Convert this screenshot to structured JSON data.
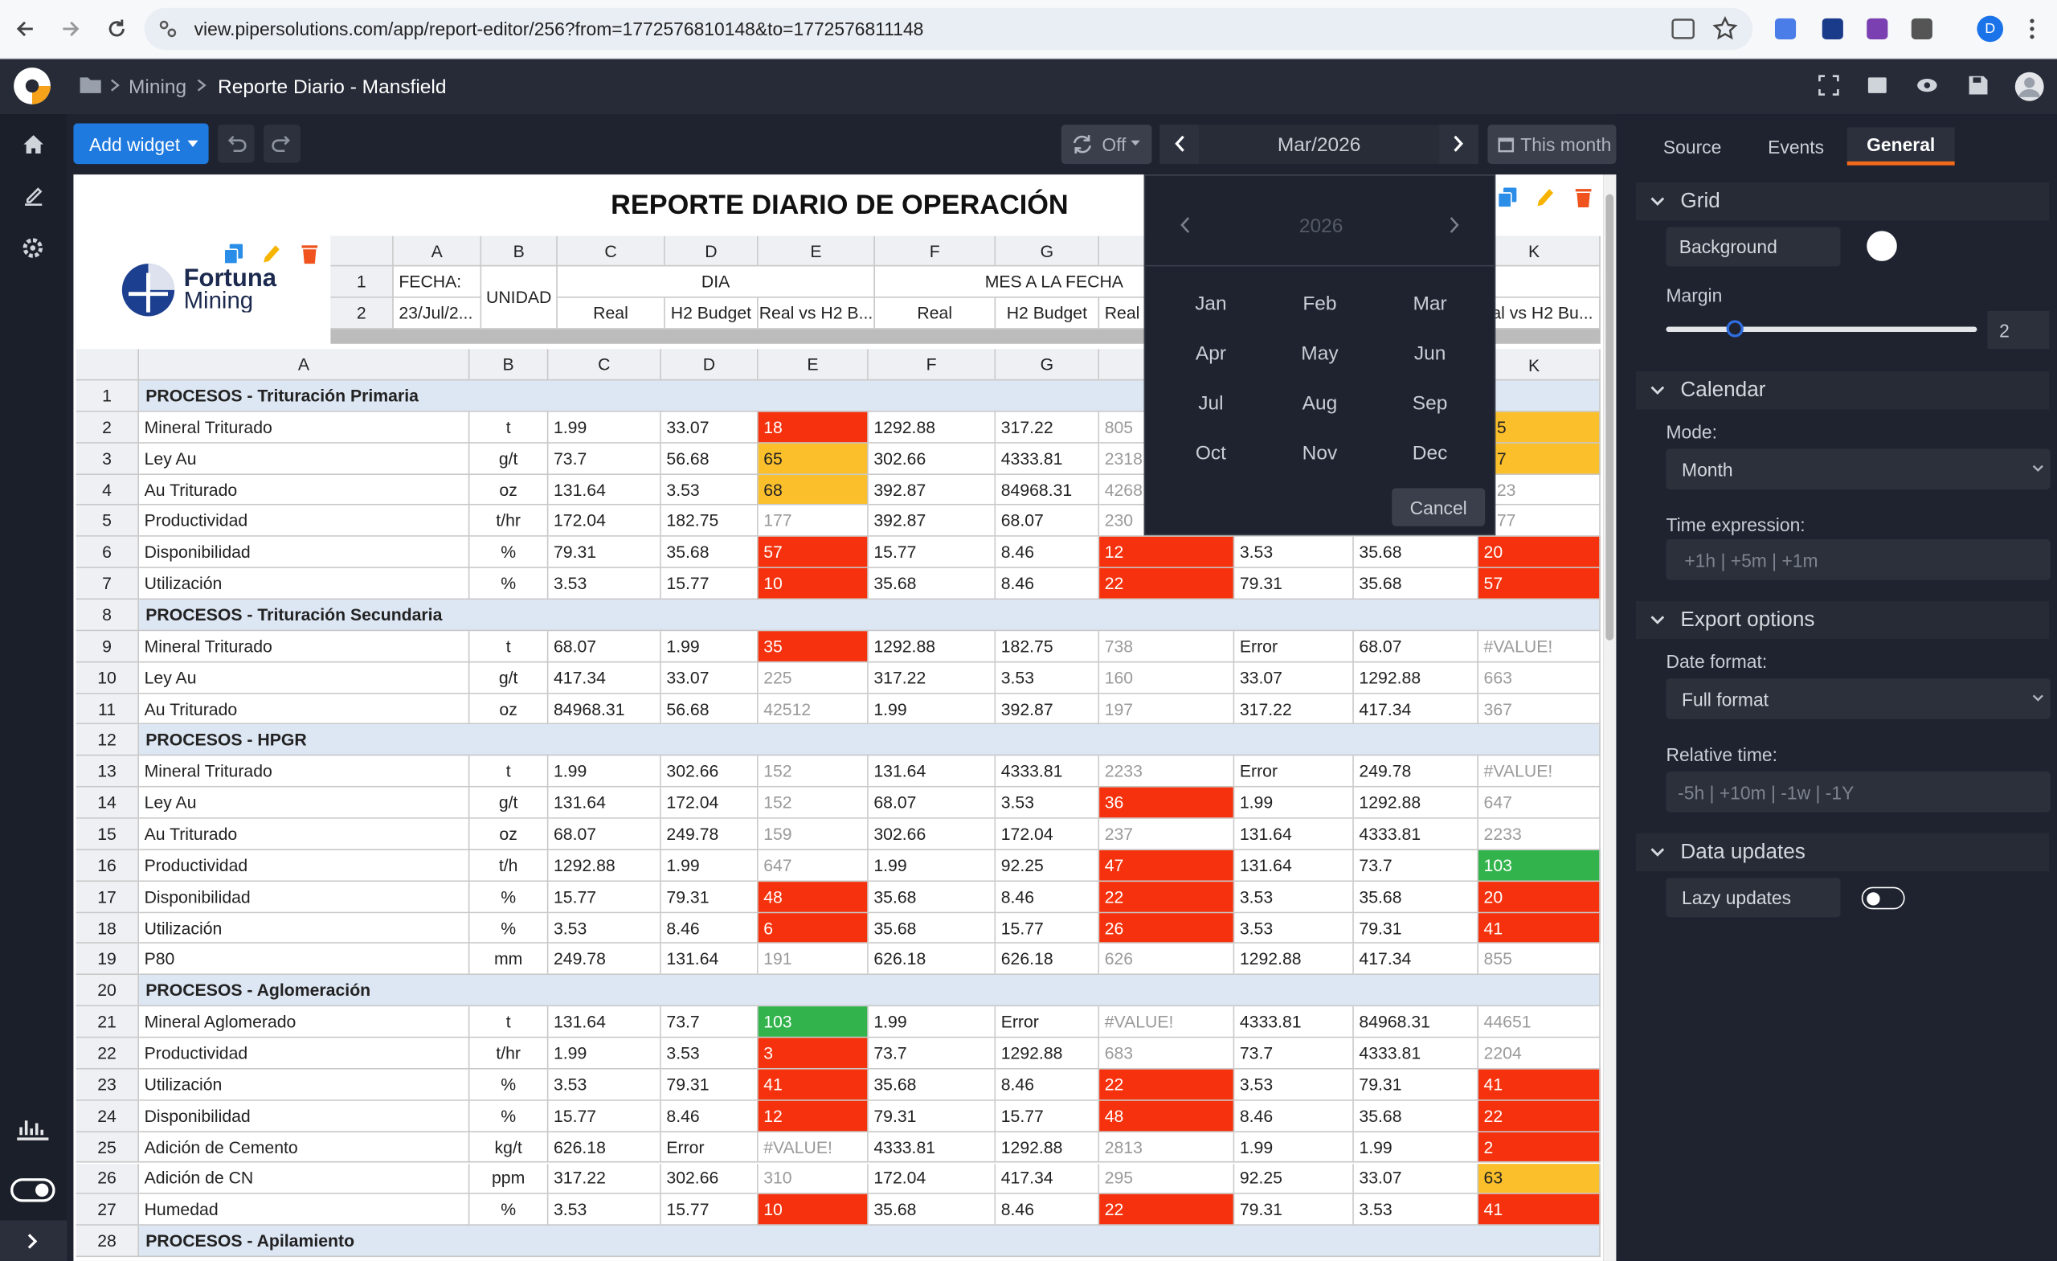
{
  "browser": {
    "url": "view.pipersolutions.com/app/report-editor/256?from=1772576810148&to=1772576811148",
    "avatar": "D"
  },
  "header": {
    "breadcrumb": "Mining",
    "title": "Reporte Diario - Mansfield"
  },
  "toolbar": {
    "add_widget": "Add widget",
    "refresh": "Off",
    "period": "Mar/2026",
    "this_month": "This month"
  },
  "calendar_popup": {
    "year": "2026",
    "months": [
      "Jan",
      "Feb",
      "Mar",
      "Apr",
      "May",
      "Jun",
      "Jul",
      "Aug",
      "Sep",
      "Oct",
      "Nov",
      "Dec"
    ],
    "cancel": "Cancel"
  },
  "report_header": {
    "title": "REPORTE DIARIO DE OPERACIÓN",
    "logo": [
      "Fortuna",
      "Mining"
    ],
    "columns": [
      "A",
      "B",
      "C",
      "D",
      "E",
      "F",
      "G"
    ],
    "edge_column": "K",
    "row_numbers": [
      1,
      2
    ],
    "fecha_label": "FECHA:",
    "fecha": "23/Jul/2...",
    "unidad": "UNIDAD",
    "dia": "DIA",
    "mes": "MES A LA FECHA",
    "subheaders": [
      "Real",
      "H2 Budget",
      "Real vs H2 B...",
      "Real",
      "H2 Budget",
      "Real v"
    ],
    "edge_subheader": "al vs H2 Bu..."
  },
  "sheet": {
    "columns": [
      "A",
      "B",
      "C",
      "D",
      "E",
      "F",
      "G"
    ],
    "edge_column": "K",
    "colors": {
      "red": "#f5320d",
      "amber": "#fbbf2b",
      "green": "#33b34c"
    },
    "rows": [
      {
        "row": 1,
        "section": "PROCESOS - Trituración Primaria"
      },
      {
        "row": 2,
        "cells": [
          "Mineral Triturado",
          "t",
          "1.99",
          "33.07",
          "18",
          "1292.88",
          "317.22",
          "805",
          null,
          null,
          "5"
        ],
        "fills": {
          "4": "red",
          "10": "amber"
        }
      },
      {
        "row": 3,
        "cells": [
          "Ley Au",
          "g/t",
          "73.7",
          "56.68",
          "65",
          "302.66",
          "4333.81",
          "2318",
          null,
          null,
          "7"
        ],
        "fills": {
          "4": "amber",
          "10": "amber"
        }
      },
      {
        "row": 4,
        "cells": [
          "Au Triturado",
          "oz",
          "131.64",
          "3.53",
          "68",
          "392.87",
          "84968.31",
          "4268",
          null,
          null,
          "23"
        ],
        "fills": {
          "4": "amber"
        }
      },
      {
        "row": 5,
        "cells": [
          "Productividad",
          "t/hr",
          "172.04",
          "182.75",
          "177",
          "392.87",
          "68.07",
          "230",
          null,
          null,
          "77"
        ],
        "fills": {}
      },
      {
        "row": 6,
        "cells": [
          "Disponibilidad",
          "%",
          "79.31",
          "35.68",
          "57",
          "15.77",
          "8.46",
          "12",
          "3.53",
          "35.68",
          "20"
        ],
        "fills": {
          "4": "red",
          "7": "red",
          "10": "red"
        }
      },
      {
        "row": 7,
        "cells": [
          "Utilización",
          "%",
          "3.53",
          "15.77",
          "10",
          "35.68",
          "8.46",
          "22",
          "79.31",
          "35.68",
          "57"
        ],
        "fills": {
          "4": "red",
          "7": "red",
          "10": "red"
        }
      },
      {
        "row": 8,
        "section": "PROCESOS - Trituración Secundaria"
      },
      {
        "row": 9,
        "cells": [
          "Mineral Triturado",
          "t",
          "68.07",
          "1.99",
          "35",
          "1292.88",
          "182.75",
          "738",
          "Error",
          "68.07",
          "#VALUE!"
        ],
        "fills": {
          "4": "red"
        }
      },
      {
        "row": 10,
        "cells": [
          "Ley Au",
          "g/t",
          "417.34",
          "33.07",
          "225",
          "317.22",
          "3.53",
          "160",
          "33.07",
          "1292.88",
          "663"
        ],
        "fills": {}
      },
      {
        "row": 11,
        "cells": [
          "Au Triturado",
          "oz",
          "84968.31",
          "56.68",
          "42512",
          "1.99",
          "392.87",
          "197",
          "317.22",
          "417.34",
          "367"
        ],
        "fills": {}
      },
      {
        "row": 12,
        "section": "PROCESOS - HPGR"
      },
      {
        "row": 13,
        "cells": [
          "Mineral Triturado",
          "t",
          "1.99",
          "302.66",
          "152",
          "131.64",
          "4333.81",
          "2233",
          "Error",
          "249.78",
          "#VALUE!"
        ],
        "fills": {}
      },
      {
        "row": 14,
        "cells": [
          "Ley Au",
          "g/t",
          "131.64",
          "172.04",
          "152",
          "68.07",
          "3.53",
          "36",
          "1.99",
          "1292.88",
          "647"
        ],
        "fills": {
          "7": "red"
        }
      },
      {
        "row": 15,
        "cells": [
          "Au Triturado",
          "oz",
          "68.07",
          "249.78",
          "159",
          "302.66",
          "172.04",
          "237",
          "131.64",
          "4333.81",
          "2233"
        ],
        "fills": {}
      },
      {
        "row": 16,
        "cells": [
          "Productividad",
          "t/h",
          "1292.88",
          "1.99",
          "647",
          "1.99",
          "92.25",
          "47",
          "131.64",
          "73.7",
          "103"
        ],
        "fills": {
          "7": "red",
          "10": "green"
        }
      },
      {
        "row": 17,
        "cells": [
          "Disponibilidad",
          "%",
          "15.77",
          "79.31",
          "48",
          "35.68",
          "8.46",
          "22",
          "3.53",
          "35.68",
          "20"
        ],
        "fills": {
          "4": "red",
          "7": "red",
          "10": "red"
        }
      },
      {
        "row": 18,
        "cells": [
          "Utilización",
          "%",
          "3.53",
          "8.46",
          "6",
          "35.68",
          "15.77",
          "26",
          "3.53",
          "79.31",
          "41"
        ],
        "fills": {
          "4": "red",
          "7": "red",
          "10": "red"
        }
      },
      {
        "row": 19,
        "cells": [
          "P80",
          "mm",
          "249.78",
          "131.64",
          "191",
          "626.18",
          "626.18",
          "626",
          "1292.88",
          "417.34",
          "855"
        ],
        "fills": {}
      },
      {
        "row": 20,
        "section": "PROCESOS - Aglomeración"
      },
      {
        "row": 21,
        "cells": [
          "Mineral Aglomerado",
          "t",
          "131.64",
          "73.7",
          "103",
          "1.99",
          "Error",
          "#VALUE!",
          "4333.81",
          "84968.31",
          "44651"
        ],
        "fills": {
          "4": "green"
        }
      },
      {
        "row": 22,
        "cells": [
          "Productividad",
          "t/hr",
          "1.99",
          "3.53",
          "3",
          "73.7",
          "1292.88",
          "683",
          "73.7",
          "4333.81",
          "2204"
        ],
        "fills": {
          "4": "red"
        }
      },
      {
        "row": 23,
        "cells": [
          "Utilización",
          "%",
          "3.53",
          "79.31",
          "41",
          "35.68",
          "8.46",
          "22",
          "3.53",
          "79.31",
          "41"
        ],
        "fills": {
          "4": "red",
          "7": "red",
          "10": "red"
        }
      },
      {
        "row": 24,
        "cells": [
          "Disponibilidad",
          "%",
          "15.77",
          "8.46",
          "12",
          "79.31",
          "15.77",
          "48",
          "8.46",
          "35.68",
          "22"
        ],
        "fills": {
          "4": "red",
          "7": "red",
          "10": "red"
        }
      },
      {
        "row": 25,
        "cells": [
          "Adición de Cemento",
          "kg/t",
          "626.18",
          "Error",
          "#VALUE!",
          "4333.81",
          "1292.88",
          "2813",
          "1.99",
          "1.99",
          "2"
        ],
        "fills": {
          "10": "red"
        }
      },
      {
        "row": 26,
        "cells": [
          "Adición de CN",
          "ppm",
          "317.22",
          "302.66",
          "310",
          "172.04",
          "417.34",
          "295",
          "92.25",
          "33.07",
          "63"
        ],
        "fills": {
          "10": "amber"
        }
      },
      {
        "row": 27,
        "cells": [
          "Humedad",
          "%",
          "3.53",
          "15.77",
          "10",
          "35.68",
          "8.46",
          "22",
          "79.31",
          "3.53",
          "41"
        ],
        "fills": {
          "4": "red",
          "7": "red",
          "10": "red"
        }
      },
      {
        "row": 28,
        "section": "PROCESOS - Apilamiento"
      }
    ]
  },
  "panel": {
    "tabs": [
      "Source",
      "Events",
      "General"
    ],
    "active_tab": 2,
    "grid": {
      "title": "Grid",
      "background": "Background",
      "background_color": "#ffffff",
      "margin": "Margin",
      "margin_value": 2
    },
    "calendar": {
      "title": "Calendar",
      "mode_label": "Mode:",
      "mode": "Month",
      "time_expression_label": "Time expression:",
      "time_expression_placeholder": "+1h | +5m | +1m"
    },
    "export": {
      "title": "Export options",
      "date_format_label": "Date format:",
      "date_format": "Full format",
      "relative_time_label": "Relative time:",
      "relative_time_placeholder": "-5h | +10m | -1w | -1Y"
    },
    "data_updates": {
      "title": "Data updates",
      "lazy_updates": "Lazy updates",
      "lazy_updates_on": false
    }
  }
}
